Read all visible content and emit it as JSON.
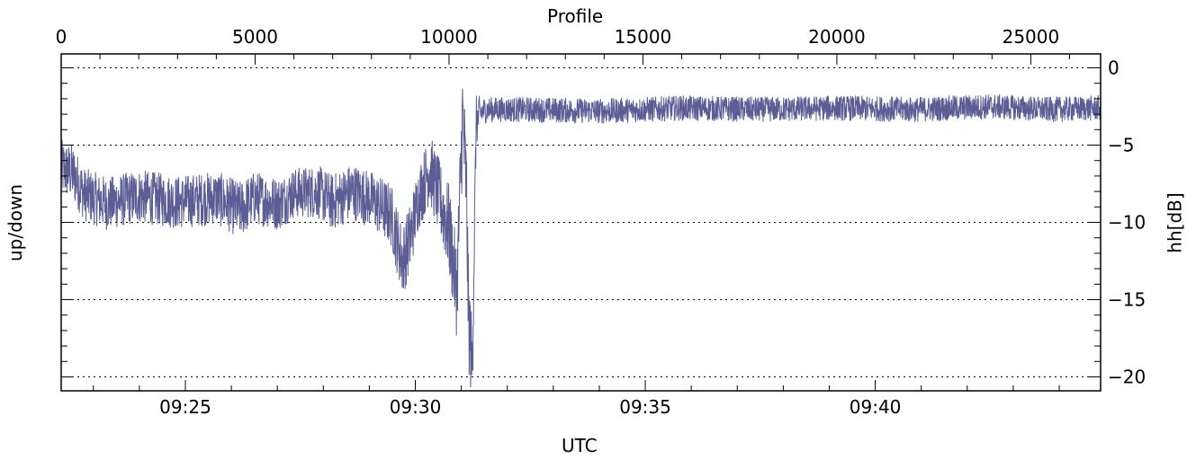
{
  "chart_data": {
    "type": "line",
    "title": "",
    "top_axis": {
      "label": "Profile",
      "range": [
        0,
        26800
      ],
      "tick_values": [
        0,
        5000,
        10000,
        15000,
        20000,
        25000
      ],
      "tick_labels": [
        "0",
        "5000",
        "10000",
        "15000",
        "20000",
        "25000"
      ]
    },
    "bottom_axis": {
      "label": "UTC",
      "range_minutes": [
        562.3,
        584.9
      ],
      "tick_values_minutes": [
        565,
        570,
        575,
        580
      ],
      "tick_labels": [
        "09:25",
        "09:30",
        "09:35",
        "09:40"
      ]
    },
    "left_axis": {
      "label": "up/down"
    },
    "right_axis": {
      "label": "hh[dB]",
      "range": [
        -20.9,
        0.9
      ],
      "tick_values": [
        0,
        -5,
        -10,
        -15,
        -20
      ],
      "tick_labels": [
        "0",
        "−5",
        "−10",
        "−15",
        "−20"
      ]
    },
    "grid": "horizontal dotted at major y ticks",
    "series": [
      {
        "color": "#5b5e94",
        "x_profile": [
          0,
          300,
          600,
          1200,
          2000,
          3000,
          4000,
          4600,
          5000,
          5600,
          6000,
          6600,
          7000,
          7500,
          8000,
          8500,
          8800,
          9000,
          9200,
          9500,
          9800,
          10000,
          10200,
          10350,
          10450,
          10500,
          10600,
          10700,
          10850,
          11000,
          12000,
          14000,
          16000,
          18000,
          20000,
          22000,
          24000,
          25500,
          26800
        ],
        "y_db": [
          -6.5,
          -6.8,
          -8.2,
          -8.8,
          -8.3,
          -8.7,
          -8.4,
          -9.2,
          -8.4,
          -8.8,
          -8.1,
          -8.0,
          -8.7,
          -8.0,
          -8.5,
          -9.5,
          -12.5,
          -11.0,
          -8.5,
          -6.5,
          -8.8,
          -10.5,
          -14.5,
          -3.0,
          -8.0,
          -16.0,
          -19.5,
          -3.5,
          -2.8,
          -2.7,
          -2.7,
          -2.8,
          -2.6,
          -2.7,
          -2.6,
          -2.7,
          -2.5,
          -2.7,
          -2.6
        ],
        "noise_amplitude_db": [
          1.6,
          1.6,
          1.5,
          1.5,
          1.5,
          1.5,
          1.5,
          1.6,
          1.5,
          1.5,
          1.4,
          1.5,
          1.6,
          1.6,
          1.6,
          1.8,
          2.0,
          2.0,
          1.8,
          2.0,
          2.2,
          2.6,
          2.6,
          3.0,
          3.0,
          3.0,
          2.5,
          1.5,
          0.8,
          0.7,
          0.7,
          0.7,
          0.7,
          0.7,
          0.7,
          0.7,
          0.7,
          0.7,
          0.7
        ]
      }
    ]
  }
}
